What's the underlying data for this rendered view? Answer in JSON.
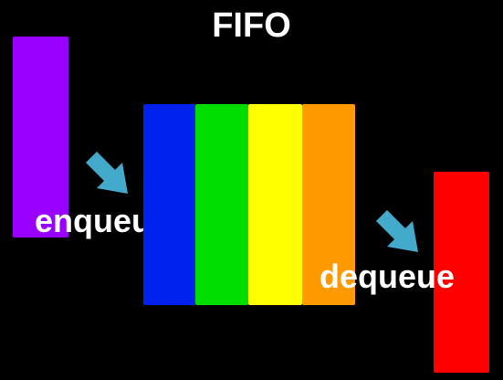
{
  "diagram": {
    "title": "FIFO",
    "enqueue_label": "enqueue",
    "dequeue_label": "dequeue",
    "incoming_block": {
      "color": "#9900ff",
      "name": "purple"
    },
    "queue_blocks": [
      {
        "color": "#0022ee",
        "name": "blue"
      },
      {
        "color": "#00dd00",
        "name": "green"
      },
      {
        "color": "#ffff00",
        "name": "yellow"
      },
      {
        "color": "#ff9900",
        "name": "orange"
      }
    ],
    "outgoing_block": {
      "color": "#ff0000",
      "name": "red"
    },
    "arrow_color": "#44aacc",
    "arrow_icon": "arrow-down-right-icon"
  }
}
